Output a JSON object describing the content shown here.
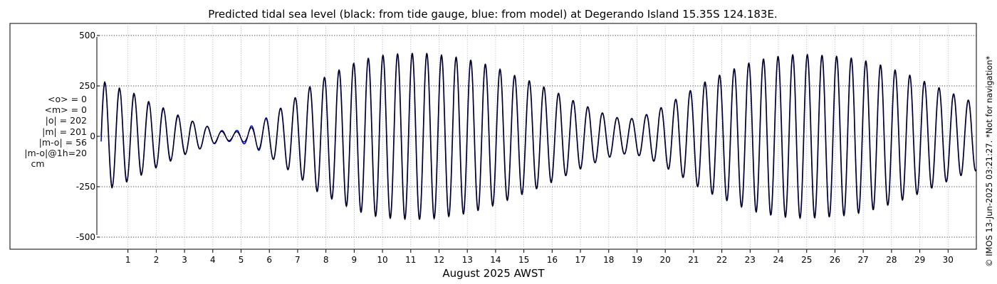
{
  "chart_data": {
    "type": "line",
    "title": "Predicted tidal sea level (black: from tide gauge, blue: from model) at Degerando Island 15.35S 124.183E.",
    "xlabel": "August 2025 AWST",
    "ylabel": "",
    "xlim": [
      -0.1,
      31
    ],
    "ylim": [
      -560,
      560
    ],
    "yticks": [
      500,
      250,
      0,
      -250,
      -500
    ],
    "ytick_labels": [
      "500",
      "250",
      "0",
      "-250",
      "-500"
    ],
    "xticks": [
      1,
      2,
      3,
      4,
      5,
      6,
      7,
      8,
      9,
      10,
      11,
      12,
      13,
      14,
      15,
      16,
      17,
      18,
      19,
      20,
      21,
      22,
      23,
      24,
      25,
      26,
      27,
      28,
      29,
      30
    ],
    "grid": true,
    "series": [
      {
        "name": "tide gauge",
        "color": "#000000",
        "days": [
          0.2,
          0.7,
          1.2,
          1.7,
          2.2,
          2.7,
          3.2,
          3.7,
          4.2,
          4.7,
          5.2,
          5.7,
          6.2,
          6.7,
          7.2,
          7.7,
          8.2,
          8.7,
          9.2,
          9.7,
          10.2,
          10.7,
          11.2,
          11.7,
          12.2,
          12.7,
          13.2,
          13.7,
          14.2,
          14.7,
          15.2,
          15.7,
          16.2,
          16.7,
          17.2,
          17.7,
          18.2,
          18.7,
          19.2,
          19.7,
          20.2,
          20.7,
          21.2,
          21.7,
          22.2,
          22.7,
          23.2,
          23.7,
          24.2,
          24.7,
          25.2,
          25.7,
          26.2,
          26.7,
          27.2,
          27.7,
          28.2,
          28.7,
          29.2,
          29.7,
          30.2,
          30.7,
          31.0
        ],
        "amplitude_cm": [
          270,
          240,
          215,
          175,
          145,
          110,
          80,
          55,
          25,
          20,
          30,
          70,
          120,
          170,
          220,
          275,
          310,
          345,
          375,
          395,
          405,
          410,
          412,
          410,
          400,
          390,
          375,
          355,
          330,
          300,
          275,
          245,
          215,
          180,
          150,
          120,
          95,
          85,
          100,
          130,
          170,
          210,
          255,
          290,
          320,
          350,
          375,
          390,
          400,
          405,
          405,
          400,
          395,
          385,
          370,
          350,
          325,
          300,
          270,
          240,
          210,
          180,
          170
        ],
        "mean_cm": 0
      },
      {
        "name": "model",
        "color": "#0000dd",
        "days": [
          0.2,
          0.7,
          1.2,
          1.7,
          2.2,
          2.7,
          3.2,
          3.7,
          4.2,
          4.7,
          5.2,
          5.7,
          6.2,
          6.7,
          7.2,
          7.7,
          8.2,
          8.7,
          9.2,
          9.7,
          10.2,
          10.7,
          11.2,
          11.7,
          12.2,
          12.7,
          13.2,
          13.7,
          14.2,
          14.7,
          15.2,
          15.7,
          16.2,
          16.7,
          17.2,
          17.7,
          18.2,
          18.7,
          19.2,
          19.7,
          20.2,
          20.7,
          21.2,
          21.7,
          22.2,
          22.7,
          23.2,
          23.7,
          24.2,
          24.7,
          25.2,
          25.7,
          26.2,
          26.7,
          27.2,
          27.7,
          28.2,
          28.7,
          29.2,
          29.7,
          30.2,
          30.7,
          31.0
        ],
        "amplitude_cm": [
          265,
          235,
          210,
          170,
          140,
          105,
          78,
          55,
          30,
          25,
          40,
          75,
          120,
          170,
          220,
          275,
          310,
          345,
          375,
          395,
          405,
          410,
          412,
          410,
          400,
          390,
          375,
          355,
          330,
          300,
          275,
          245,
          215,
          180,
          150,
          120,
          95,
          85,
          100,
          130,
          170,
          210,
          255,
          290,
          320,
          350,
          375,
          390,
          400,
          405,
          405,
          400,
          395,
          385,
          370,
          350,
          325,
          300,
          270,
          240,
          210,
          180,
          170
        ],
        "mean_cm": 0
      }
    ]
  },
  "stats": {
    "mean_obs": "<o> = 0",
    "mean_model": "<m> = 0",
    "abs_obs": "|o| = 202",
    "abs_model": "|m| = 201",
    "abs_diff": "|m-o| = 56",
    "abs_diff_1h": "|m-o|@1h=20",
    "unit": "cm"
  },
  "side_note": "© IMOS 13-Jun-2025 03:21:27. *Not for navigation*"
}
